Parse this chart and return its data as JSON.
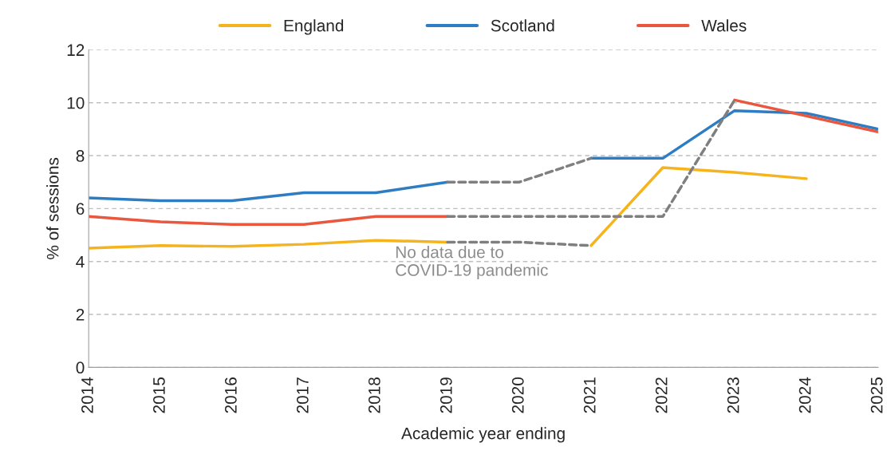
{
  "chart_data": {
    "type": "line",
    "xlabel": "Academic year ending",
    "ylabel": "% of sessions",
    "x": [
      2014,
      2015,
      2016,
      2017,
      2018,
      2019,
      2020,
      2021,
      2022,
      2023,
      2024,
      2025
    ],
    "series": [
      {
        "name": "England",
        "color": "#f5b41e",
        "values": [
          4.5,
          4.6,
          4.57,
          4.65,
          4.8,
          4.73,
          null,
          4.6,
          7.55,
          7.37,
          7.13,
          null
        ]
      },
      {
        "name": "Scotland",
        "color": "#2e7dc3",
        "values": [
          6.4,
          6.3,
          6.3,
          6.6,
          6.6,
          7.0,
          null,
          7.9,
          7.9,
          9.7,
          9.6,
          9.0
        ]
      },
      {
        "name": "Wales",
        "color": "#e8573e",
        "values": [
          5.7,
          5.5,
          5.4,
          5.4,
          5.7,
          5.7,
          null,
          null,
          null,
          10.1,
          9.5,
          8.9
        ]
      },
      {
        "color": "#7f7f7f",
        "line_style": "dashed",
        "values": [
          null,
          null,
          null,
          null,
          null,
          4.73,
          4.73,
          4.6,
          null,
          null,
          null,
          null
        ]
      },
      {
        "color": "#7f7f7f",
        "line_style": "dashed",
        "values": [
          null,
          null,
          null,
          null,
          null,
          7.0,
          7.0,
          7.9,
          null,
          null,
          null,
          null
        ]
      },
      {
        "color": "#7f7f7f",
        "line_style": "dashed",
        "values": [
          null,
          null,
          null,
          null,
          null,
          5.7,
          5.7,
          5.7,
          5.7,
          10.1,
          null,
          null
        ]
      }
    ],
    "xlim": [
      2014,
      2025
    ],
    "xticks": [
      2014,
      2015,
      2016,
      2017,
      2018,
      2019,
      2020,
      2021,
      2022,
      2023,
      2024,
      2025
    ],
    "ylim": [
      0,
      12
    ],
    "yticks": [
      0,
      2,
      4,
      6,
      8,
      10,
      12
    ],
    "grid": "y",
    "legend": "top",
    "marker": "none",
    "line_style": "solid",
    "annotations": [
      "No data due to\nCOVID-19 pandemic"
    ]
  }
}
